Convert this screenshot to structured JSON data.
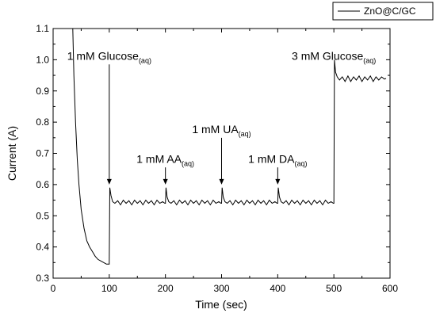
{
  "chart_data": {
    "type": "line",
    "xlabel": "Time (sec)",
    "ylabel": "Current (A)",
    "xlim": [
      0,
      600
    ],
    "ylim": [
      0.3,
      1.1
    ],
    "x_ticks": [
      0,
      100,
      200,
      300,
      400,
      500,
      600
    ],
    "y_ticks": [
      0.3,
      0.4,
      0.5,
      0.6,
      0.7,
      0.8,
      0.9,
      1.0,
      1.1
    ],
    "x_tick_labels": [
      "0",
      "100",
      "200",
      "300",
      "400",
      "500",
      "600"
    ],
    "y_tick_labels": [
      "0.3",
      "0.4",
      "0.5",
      "0.6",
      "0.7",
      "0.8",
      "0.9",
      "1.0",
      "1.1"
    ],
    "grid": false,
    "legend": {
      "position": "top-right",
      "entries": [
        "ZnO@C/GC"
      ]
    },
    "series": [
      {
        "name": "ZnO@C/GC",
        "color": "#000000",
        "x": [
          35,
          37,
          40,
          43,
          46,
          50,
          55,
          60,
          65,
          70,
          75,
          80,
          85,
          90,
          95,
          99,
          100,
          101,
          103,
          106,
          110,
          115,
          120,
          125,
          130,
          135,
          140,
          145,
          150,
          155,
          160,
          165,
          170,
          175,
          180,
          185,
          190,
          195,
          199,
          200,
          201,
          203,
          206,
          210,
          215,
          220,
          225,
          230,
          235,
          240,
          245,
          250,
          255,
          260,
          265,
          270,
          275,
          280,
          285,
          290,
          295,
          299,
          300,
          301,
          303,
          306,
          310,
          315,
          320,
          325,
          330,
          335,
          340,
          345,
          350,
          355,
          360,
          365,
          370,
          375,
          380,
          385,
          390,
          395,
          399,
          400,
          401,
          403,
          406,
          410,
          415,
          420,
          425,
          430,
          435,
          440,
          445,
          450,
          455,
          460,
          465,
          470,
          475,
          480,
          485,
          490,
          495,
          499,
          500,
          501,
          503,
          506,
          510,
          515,
          520,
          525,
          530,
          535,
          540,
          545,
          550,
          555,
          560,
          565,
          570,
          575,
          580,
          585,
          590,
          593
        ],
        "y": [
          1.1,
          0.95,
          0.8,
          0.68,
          0.6,
          0.52,
          0.46,
          0.42,
          0.4,
          0.385,
          0.37,
          0.36,
          0.355,
          0.35,
          0.345,
          0.345,
          0.345,
          0.59,
          0.565,
          0.545,
          0.54,
          0.548,
          0.535,
          0.55,
          0.54,
          0.548,
          0.535,
          0.55,
          0.54,
          0.548,
          0.535,
          0.55,
          0.54,
          0.548,
          0.535,
          0.55,
          0.54,
          0.545,
          0.54,
          0.54,
          0.59,
          0.56,
          0.545,
          0.54,
          0.548,
          0.535,
          0.55,
          0.54,
          0.548,
          0.535,
          0.55,
          0.54,
          0.548,
          0.535,
          0.55,
          0.54,
          0.548,
          0.535,
          0.55,
          0.54,
          0.545,
          0.54,
          0.54,
          0.59,
          0.56,
          0.545,
          0.54,
          0.548,
          0.535,
          0.55,
          0.54,
          0.548,
          0.535,
          0.55,
          0.54,
          0.548,
          0.535,
          0.55,
          0.54,
          0.548,
          0.535,
          0.55,
          0.54,
          0.545,
          0.54,
          0.54,
          0.59,
          0.56,
          0.545,
          0.54,
          0.548,
          0.535,
          0.55,
          0.54,
          0.548,
          0.535,
          0.55,
          0.54,
          0.548,
          0.535,
          0.55,
          0.54,
          0.548,
          0.535,
          0.55,
          0.54,
          0.545,
          0.54,
          0.54,
          1.0,
          0.96,
          0.945,
          0.935,
          0.945,
          0.93,
          0.948,
          0.93,
          0.945,
          0.935,
          0.948,
          0.93,
          0.945,
          0.935,
          0.948,
          0.93,
          0.945,
          0.935,
          0.945,
          0.938,
          0.94
        ]
      }
    ],
    "annotations": [
      {
        "main": "1 mM Glucose",
        "sub": "(aq)",
        "x": 100,
        "y_text": 1.0,
        "arrow_from": 0.985,
        "arrow_to": 0.6
      },
      {
        "main": "1 mM AA",
        "sub": "(aq)",
        "x": 200,
        "y_text": 0.67,
        "arrow_from": 0.655,
        "arrow_to": 0.6
      },
      {
        "main": "1 mM UA",
        "sub": "(aq)",
        "x": 300,
        "y_text": 0.765,
        "arrow_from": 0.75,
        "arrow_to": 0.6
      },
      {
        "main": "1 mM DA",
        "sub": "(aq)",
        "x": 400,
        "y_text": 0.67,
        "arrow_from": 0.655,
        "arrow_to": 0.6
      },
      {
        "main": "3 mM Glucose",
        "sub": "(aq)",
        "x": 500,
        "y_text": 1.0,
        "arrow_from": null,
        "arrow_to": null
      }
    ]
  }
}
